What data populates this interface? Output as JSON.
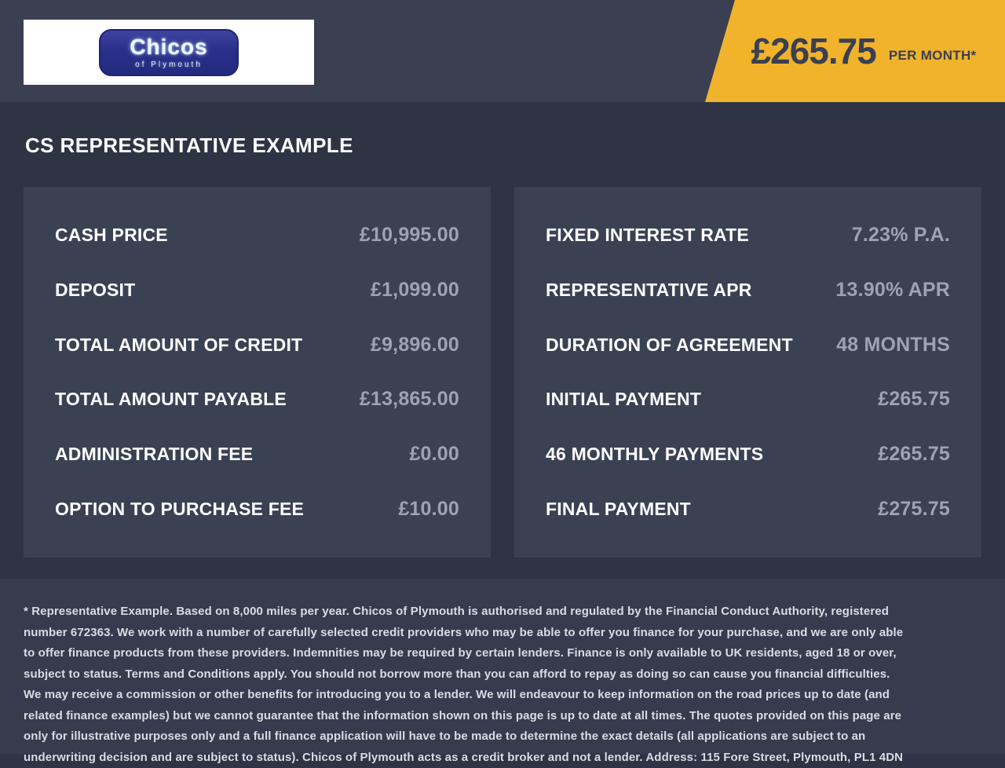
{
  "header": {
    "logo": {
      "brand": "Chicos",
      "subtitle": "of Plymouth"
    },
    "price_banner": {
      "amount": "£265.75",
      "period": "PER MONTH*"
    }
  },
  "heading": "CS REPRESENTATIVE EXAMPLE",
  "panels": {
    "left": {
      "rows": [
        {
          "label": "CASH PRICE",
          "value": "£10,995.00"
        },
        {
          "label": "DEPOSIT",
          "value": "£1,099.00"
        },
        {
          "label": "TOTAL AMOUNT OF CREDIT",
          "value": "£9,896.00"
        },
        {
          "label": "TOTAL AMOUNT PAYABLE",
          "value": "£13,865.00"
        },
        {
          "label": "ADMINISTRATION FEE",
          "value": "£0.00"
        },
        {
          "label": "OPTION TO PURCHASE FEE",
          "value": "£10.00"
        }
      ]
    },
    "right": {
      "rows": [
        {
          "label": "FIXED INTEREST RATE",
          "value": "7.23% P.A."
        },
        {
          "label": "REPRESENTATIVE APR",
          "value": "13.90% APR"
        },
        {
          "label": "DURATION OF AGREEMENT",
          "value": "48 MONTHS"
        },
        {
          "label": "INITIAL PAYMENT",
          "value": "£265.75"
        },
        {
          "label": "46 MONTHLY PAYMENTS",
          "value": "£265.75"
        },
        {
          "label": "FINAL PAYMENT",
          "value": "£275.75"
        }
      ]
    }
  },
  "footer": {
    "disclaimer": "* Representative Example. Based on 8,000 miles per year. Chicos of Plymouth is authorised and regulated by the Financial Conduct Authority, registered number 672363. We work with a number of carefully selected credit providers who may be able to offer you finance for your purchase, and we are only able to offer finance products from these providers. Indemnities may be required by certain lenders. Finance is only available to UK residents, aged 18 or over, subject to status. Terms and Conditions apply. You should not borrow more than you can afford to repay as doing so can cause you financial difficulties. We may receive a commission or other benefits for introducing you to a lender. We will endeavour to keep information on the road prices up to date (and related finance examples) but we cannot guarantee that the information shown on this page is up to date at all times. The quotes provided on this page are only for illustrative purposes only and a full finance application will have to be made to determine the exact details (all applications are subject to an underwriting decision and are subject to status). Chicos of Plymouth acts as a credit broker and not a lender. Address: 115 Fore Street, Plymouth, PL1 4DN"
  },
  "colors": {
    "accent_yellow": "#F1B32C",
    "header_bg": "#3A4052",
    "main_bg": "#2F3444",
    "panel_bg": "#3A4153",
    "footer_bg": "#363C4E",
    "value_text": "#9DA3B3",
    "label_text": "#FFFFFF",
    "banner_text": "#3A4050",
    "logo_blue": "#2A3089"
  }
}
